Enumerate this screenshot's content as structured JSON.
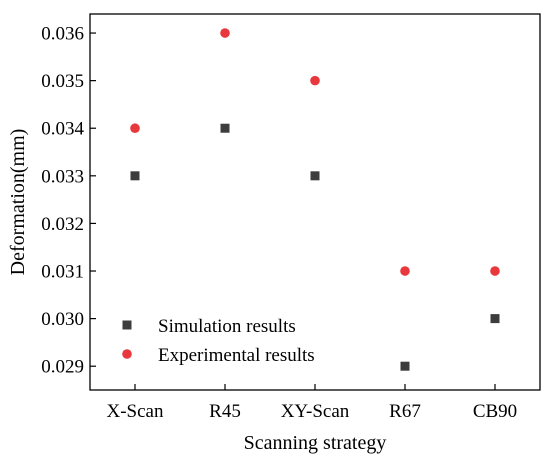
{
  "chart_data": {
    "type": "scatter",
    "title": "",
    "xlabel": "Scanning strategy",
    "ylabel": "Deformation(mm)",
    "categories": [
      "X-Scan",
      "R45",
      "XY-Scan",
      "R67",
      "CB90"
    ],
    "ylim": [
      0.0285,
      0.0364
    ],
    "yticks": [
      "0.029",
      "0.030",
      "0.031",
      "0.032",
      "0.033",
      "0.034",
      "0.035",
      "0.036"
    ],
    "grid": false,
    "legend_position": "bottom-left",
    "series": [
      {
        "name": "Simulation results",
        "marker": "square",
        "color": "#3d3d3d",
        "values": [
          0.033,
          0.034,
          0.033,
          0.029,
          0.03
        ]
      },
      {
        "name": "Experimental results",
        "marker": "circle",
        "color": "#e8383d",
        "values": [
          0.034,
          0.036,
          0.035,
          0.031,
          0.031
        ]
      }
    ]
  }
}
